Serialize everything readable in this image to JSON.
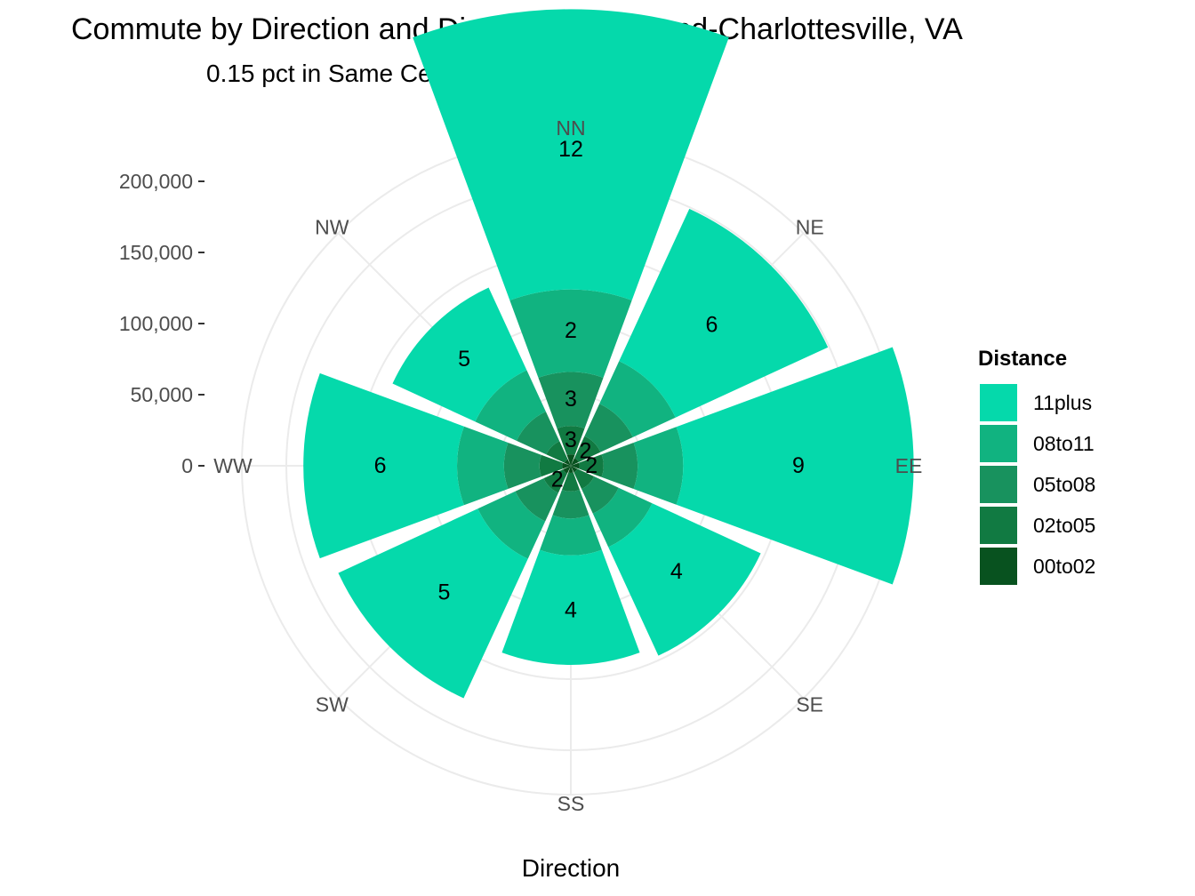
{
  "chart_data": {
    "type": "bar",
    "coord": "polar",
    "title": "Commute by Direction and Distance, Richmond-Charlottesville, VA",
    "subtitle": "0.15 pct in Same Census Tract",
    "xlabel": "Direction",
    "ylabel": "",
    "categories": [
      "NN",
      "NE",
      "EE",
      "SE",
      "SS",
      "SW",
      "WW",
      "NW"
    ],
    "y_ticks": [
      "0",
      "50,000",
      "100,000",
      "150,000",
      "200,000"
    ],
    "y_tick_values": [
      0,
      50000,
      100000,
      150000,
      200000
    ],
    "ylim": [
      0,
      200000
    ],
    "grid": true,
    "legend": {
      "title": "Distance",
      "position": "right"
    },
    "series": [
      {
        "name": "00to02",
        "color": "#08521f",
        "values": [
          8000,
          6000,
          6000,
          5000,
          5000,
          6000,
          6000,
          5000
        ]
      },
      {
        "name": "02to05",
        "color": "#117a42",
        "values": [
          20000,
          17000,
          17000,
          13000,
          13000,
          15000,
          16000,
          14000
        ]
      },
      {
        "name": "05to08",
        "color": "#18925e",
        "values": [
          38000,
          25000,
          24000,
          19000,
          19000,
          22000,
          25000,
          23000
        ]
      },
      {
        "name": "08to11",
        "color": "#11b380",
        "values": [
          58000,
          33000,
          32000,
          26000,
          26000,
          29000,
          33000,
          32000
        ]
      },
      {
        "name": "11plus",
        "color": "#05d9ab",
        "values": [
          197000,
          118000,
          162000,
          84000,
          77000,
          108000,
          108000,
          64000
        ]
      }
    ],
    "segment_labels": [
      {
        "category": "NN",
        "series": "02to05",
        "label": "3"
      },
      {
        "category": "NN",
        "series": "05to08",
        "label": "3"
      },
      {
        "category": "NN",
        "series": "08to11",
        "label": "2"
      },
      {
        "category": "NN",
        "series": "11plus",
        "label": "12"
      },
      {
        "category": "NE",
        "series": "02to05",
        "label": "2"
      },
      {
        "category": "NE",
        "series": "11plus",
        "label": "6"
      },
      {
        "category": "EE",
        "series": "02to05",
        "label": "2"
      },
      {
        "category": "EE",
        "series": "11plus",
        "label": "9"
      },
      {
        "category": "SE",
        "series": "11plus",
        "label": "4"
      },
      {
        "category": "SS",
        "series": "11plus",
        "label": "4"
      },
      {
        "category": "SW",
        "series": "02to05",
        "label": "2"
      },
      {
        "category": "SW",
        "series": "11plus",
        "label": "5"
      },
      {
        "category": "WW",
        "series": "11plus",
        "label": "6"
      },
      {
        "category": "NW",
        "series": "11plus",
        "label": "5"
      }
    ]
  }
}
